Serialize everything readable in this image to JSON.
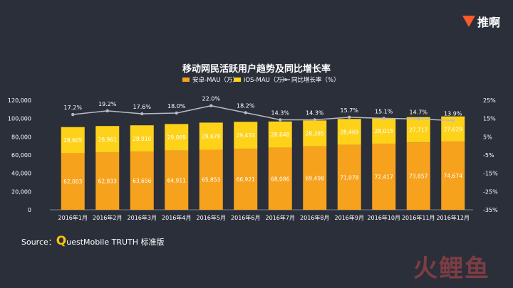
{
  "brand": {
    "name": "推啊"
  },
  "chart_data": {
    "type": "bar",
    "title": "移动网民活跃用户趋势及同比增长率",
    "categories": [
      "2016年1月",
      "2016年2月",
      "2016年3月",
      "2016年4月",
      "2016年5月",
      "2016年6月",
      "2016年7月",
      "2016年8月",
      "2016年9月",
      "2016年10月",
      "2016年11月",
      "2016年12月"
    ],
    "stacked": true,
    "series": [
      {
        "name": "安卓-MAU（万）",
        "type": "bar",
        "color": "#f7a21d",
        "values": [
          62003,
          62833,
          63656,
          64911,
          65853,
          66921,
          68086,
          69498,
          71078,
          72417,
          73857,
          74674
        ]
      },
      {
        "name": "iOS-MAU（万）",
        "type": "bar",
        "color": "#ffd21a",
        "values": [
          28605,
          28961,
          28910,
          29069,
          29678,
          29433,
          28648,
          28385,
          28469,
          28015,
          27717,
          27629
        ]
      },
      {
        "name": "同比增长率（%）",
        "type": "line",
        "color": "#b7bcc6",
        "axis": "right",
        "values": [
          17.2,
          19.2,
          17.6,
          18.0,
          22.0,
          18.2,
          14.3,
          14.3,
          15.7,
          15.1,
          14.7,
          13.9
        ],
        "labels": [
          "17.2%",
          "19.2%",
          "17.6%",
          "18.0%",
          "22.0%",
          "18.2%",
          "14.3%",
          "14.3%",
          "15.7%",
          "15.1%",
          "14.7%",
          "13.9%"
        ]
      }
    ],
    "left_axis": {
      "min": 0,
      "max": 120000,
      "step": 20000,
      "ticks": [
        "0",
        "20,000",
        "40,000",
        "60,000",
        "80,000",
        "100,000",
        "120,000"
      ]
    },
    "right_axis": {
      "min": -35,
      "max": 25,
      "step": 10,
      "ticks": [
        "-35%",
        "-25%",
        "-15%",
        "-5%",
        "5%",
        "15%",
        "25%"
      ]
    },
    "legend_position": "top-center",
    "grid": false
  },
  "source": {
    "prefix": "Source：",
    "q": "Q",
    "text": "uestMobile TRUTH 标准版"
  },
  "watermark": "火鲤鱼"
}
